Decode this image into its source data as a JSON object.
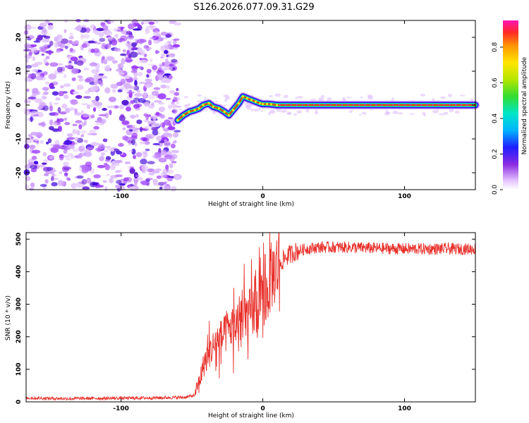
{
  "figure_title": "S126.2026.077.09.31.G29",
  "colorbar": {
    "label": "Normalized spectral amplitude",
    "range": [
      0,
      0.95
    ],
    "ticks": [
      "0.0",
      "0.2",
      "0.4",
      "0.6",
      "0.8"
    ],
    "tick_values": [
      0.0,
      0.2,
      0.4,
      0.6,
      0.8
    ]
  },
  "chart_data": [
    {
      "type": "heatmap",
      "title": "S126.2026.077.09.31.G29",
      "xlabel": "Height of straight line (km)",
      "ylabel": "Frequency (Hz)",
      "xlim": [
        -167,
        150
      ],
      "ylim": [
        -25,
        25
      ],
      "x_ticks": [
        -100,
        0,
        100
      ],
      "x_tick_labels": [
        "-100",
        "0",
        "100"
      ],
      "y_ticks": [
        20,
        10,
        0,
        -10,
        -20
      ],
      "y_tick_labels": [
        "20",
        "10",
        "0",
        "-10",
        "-20"
      ],
      "noise_region_x": [
        -167,
        -60
      ],
      "ridge": {
        "x": [
          -60,
          -56,
          -52,
          -48,
          -45,
          -42,
          -38,
          -35,
          -31,
          -27,
          -24,
          -21,
          -17,
          -14,
          -11,
          -8,
          -5,
          -2,
          0,
          3,
          6,
          10,
          150
        ],
        "y": [
          -4.5,
          -3.0,
          -2.0,
          -1.5,
          -1.0,
          0.0,
          0.5,
          -0.5,
          -1.0,
          -2.0,
          -3.0,
          -1.5,
          0.5,
          2.5,
          2.0,
          1.5,
          1.0,
          0.5,
          0.3,
          0.3,
          0.2,
          0.0,
          0.0
        ],
        "amplitude": "0.3-0.95"
      }
    },
    {
      "type": "line",
      "title": "",
      "xlabel": "Height of straight line (km)",
      "ylabel": "SNR (10 * v/v)",
      "xlim": [
        -167,
        150
      ],
      "ylim": [
        0,
        520
      ],
      "x_ticks": [
        -100,
        0,
        100
      ],
      "x_tick_labels": [
        "-100",
        "0",
        "100"
      ],
      "y_ticks": [
        0,
        100,
        200,
        300,
        400,
        500
      ],
      "y_tick_labels": [
        "0",
        "100",
        "200",
        "300",
        "400",
        "500"
      ],
      "series": [
        {
          "name": "SNR",
          "color": "#e8302a",
          "x": [
            -167,
            -140,
            -110,
            -80,
            -55,
            -48,
            -45,
            -42,
            -38,
            -35,
            -32,
            -28,
            -25,
            -22,
            -18,
            -15,
            -12,
            -8,
            -5,
            -2,
            0,
            3,
            6,
            9,
            12,
            15,
            18,
            22,
            26,
            30,
            40,
            60,
            80,
            100,
            120,
            150
          ],
          "values": [
            12,
            10,
            11,
            12,
            14,
            20,
            60,
            110,
            150,
            170,
            190,
            200,
            215,
            230,
            240,
            250,
            265,
            275,
            285,
            300,
            315,
            330,
            380,
            410,
            425,
            440,
            450,
            460,
            465,
            470,
            475,
            475,
            472,
            470,
            470,
            470
          ]
        }
      ]
    }
  ]
}
